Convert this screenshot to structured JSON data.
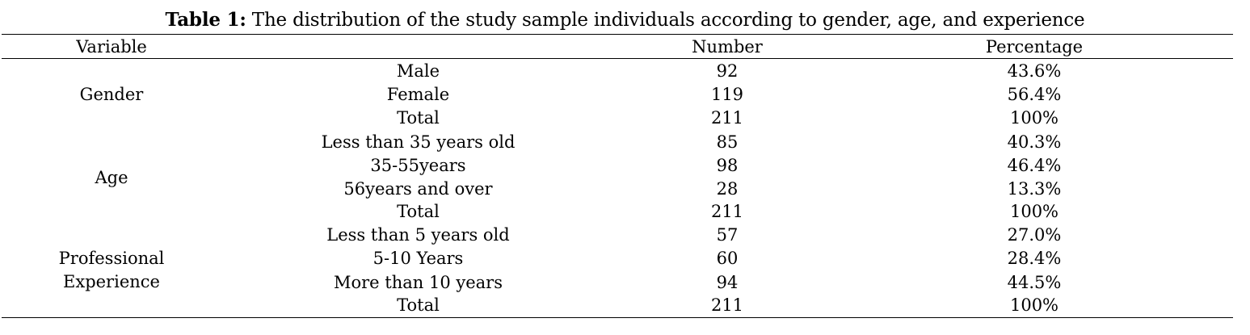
{
  "caption": {
    "label": "Table 1:",
    "text": " The distribution of the study sample individuals according to gender, age, and experience"
  },
  "headers": {
    "variable": "Variable",
    "category": "",
    "number": "Number",
    "percentage": "Percentage"
  },
  "groups": [
    {
      "variable": "Gender",
      "rows": [
        {
          "category": "Male",
          "number": "92",
          "percentage": "43.6%"
        },
        {
          "category": "Female",
          "number": "119",
          "percentage": "56.4%"
        },
        {
          "category": "Total",
          "number": "211",
          "percentage": "100%"
        }
      ]
    },
    {
      "variable": "Age",
      "rows": [
        {
          "category": "Less than 35 years old",
          "number": "85",
          "percentage": "40.3%"
        },
        {
          "category": "35-55years",
          "number": "98",
          "percentage": "46.4%"
        },
        {
          "category": "56years and over",
          "number": "28",
          "percentage": "13.3%"
        },
        {
          "category": "Total",
          "number": "211",
          "percentage": "100%"
        }
      ]
    },
    {
      "variable_line1": "Professional",
      "variable_line2": "Experience",
      "rows": [
        {
          "category": "Less than 5 years old",
          "number": "57",
          "percentage": "27.0%"
        },
        {
          "category": "5-10 Years",
          "number": "60",
          "percentage": "28.4%"
        },
        {
          "category": "More than 10 years",
          "number": "94",
          "percentage": "44.5%"
        },
        {
          "category": "Total",
          "number": "211",
          "percentage": "100%"
        }
      ]
    }
  ]
}
